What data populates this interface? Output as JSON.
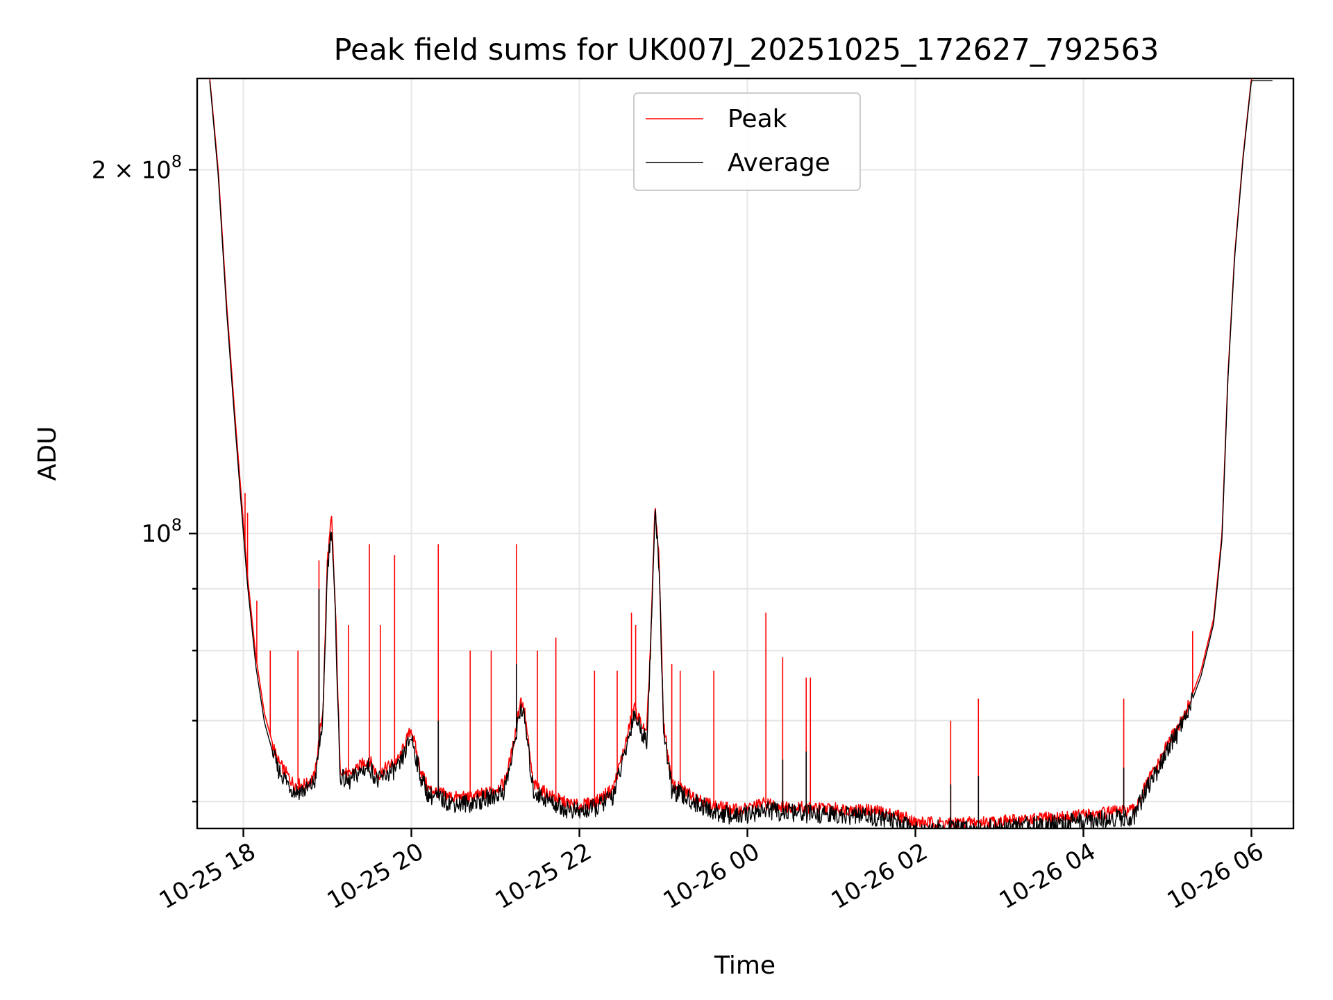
{
  "chart_data": {
    "type": "line",
    "title": "Peak field sums for UK007J_20251025_172627_792563",
    "xlabel": "Time",
    "ylabel": "ADU",
    "yscale": "log",
    "ylim": [
      57000000,
      238000000
    ],
    "xlim_hours": [
      -0.55,
      12.5
    ],
    "grid": true,
    "legend_position": "upper-center",
    "x_ticks": [
      {
        "hours": 0,
        "label": "10-25 18"
      },
      {
        "hours": 2,
        "label": "10-25 20"
      },
      {
        "hours": 4,
        "label": "10-25 22"
      },
      {
        "hours": 6,
        "label": "10-26 00"
      },
      {
        "hours": 8,
        "label": "10-26 02"
      },
      {
        "hours": 10,
        "label": "10-26 04"
      },
      {
        "hours": 12,
        "label": "10-26 06"
      }
    ],
    "y_ticks_major": [
      {
        "value": 100000000,
        "base": "10",
        "exp": "8",
        "coef": ""
      },
      {
        "value": 200000000,
        "base": "10",
        "exp": "8",
        "coef": "2 × "
      }
    ],
    "y_ticks_minor": [
      60000000,
      70000000,
      80000000,
      90000000
    ],
    "series": [
      {
        "name": "Peak",
        "color": "#ff0000",
        "x_hours": [
          -0.4,
          -0.3,
          -0.2,
          -0.1,
          0.0,
          0.05,
          0.15,
          0.25,
          0.4,
          0.6,
          0.75,
          0.85,
          0.95,
          1.0,
          1.05,
          1.1,
          1.15,
          1.25,
          1.35,
          1.5,
          1.6,
          1.7,
          1.85,
          2.0,
          2.1,
          2.2,
          2.5,
          2.7,
          2.9,
          3.1,
          3.2,
          3.3,
          3.35,
          3.45,
          3.6,
          3.8,
          4.0,
          4.2,
          4.4,
          4.55,
          4.65,
          4.72,
          4.8,
          4.85,
          4.9,
          4.95,
          5.0,
          5.1,
          5.3,
          5.6,
          5.9,
          6.2,
          6.4,
          6.7,
          7.0,
          7.5,
          7.9,
          8.0,
          8.3,
          8.8,
          9.2,
          9.8,
          10.3,
          10.6,
          10.8,
          10.9,
          11.0,
          11.2,
          11.4,
          11.55,
          11.65,
          11.72,
          11.8,
          11.9,
          12.0,
          12.1,
          12.25
        ],
        "values": [
          238000000,
          200000000,
          155000000,
          125000000,
          102000000,
          92000000,
          79000000,
          71000000,
          65000000,
          62000000,
          62000000,
          63000000,
          72000000,
          95000000,
          103000000,
          85000000,
          64000000,
          63000000,
          64000000,
          65000000,
          63000000,
          64000000,
          65000000,
          69000000,
          64000000,
          61500000,
          60500000,
          60500000,
          61000000,
          62000000,
          66000000,
          73000000,
          71000000,
          62000000,
          61000000,
          60000000,
          59500000,
          60000000,
          61500000,
          67000000,
          72000000,
          70000000,
          68000000,
          82000000,
          105000000,
          95000000,
          70000000,
          62000000,
          61000000,
          59500000,
          59000000,
          59800000,
          59500000,
          59300000,
          59200000,
          59000000,
          58200000,
          57700000,
          57600000,
          57700000,
          57900000,
          58300000,
          58800000,
          59000000,
          63000000,
          64500000,
          67000000,
          70500000,
          77000000,
          85000000,
          100000000,
          135000000,
          170000000,
          205000000,
          238000000,
          238000000,
          238000000
        ],
        "spikes": [
          {
            "hours": 0.02,
            "value": 108000000
          },
          {
            "hours": 0.05,
            "value": 104000000
          },
          {
            "hours": 0.16,
            "value": 88000000
          },
          {
            "hours": 0.32,
            "value": 80000000
          },
          {
            "hours": 0.65,
            "value": 80000000
          },
          {
            "hours": 0.9,
            "value": 95000000
          },
          {
            "hours": 1.08,
            "value": 91000000
          },
          {
            "hours": 1.25,
            "value": 84000000
          },
          {
            "hours": 1.5,
            "value": 98000000
          },
          {
            "hours": 1.63,
            "value": 84000000
          },
          {
            "hours": 1.8,
            "value": 96000000
          },
          {
            "hours": 2.32,
            "value": 98000000
          },
          {
            "hours": 2.7,
            "value": 80000000
          },
          {
            "hours": 2.95,
            "value": 80000000
          },
          {
            "hours": 3.25,
            "value": 98000000
          },
          {
            "hours": 3.5,
            "value": 80000000
          },
          {
            "hours": 3.72,
            "value": 82000000
          },
          {
            "hours": 4.18,
            "value": 77000000
          },
          {
            "hours": 4.45,
            "value": 77000000
          },
          {
            "hours": 4.62,
            "value": 86000000
          },
          {
            "hours": 4.67,
            "value": 84000000
          },
          {
            "hours": 5.1,
            "value": 78000000
          },
          {
            "hours": 5.2,
            "value": 77000000
          },
          {
            "hours": 5.6,
            "value": 77000000
          },
          {
            "hours": 6.22,
            "value": 86000000
          },
          {
            "hours": 6.42,
            "value": 79000000
          },
          {
            "hours": 6.7,
            "value": 76000000
          },
          {
            "hours": 6.75,
            "value": 76000000
          },
          {
            "hours": 8.42,
            "value": 70000000
          },
          {
            "hours": 8.75,
            "value": 73000000
          },
          {
            "hours": 10.48,
            "value": 73000000
          },
          {
            "hours": 11.3,
            "value": 83000000
          }
        ]
      },
      {
        "name": "Average",
        "color": "#000000",
        "x_hours": [
          -0.4,
          -0.3,
          -0.2,
          -0.1,
          0.0,
          0.05,
          0.15,
          0.25,
          0.4,
          0.6,
          0.75,
          0.85,
          0.95,
          1.0,
          1.05,
          1.1,
          1.15,
          1.25,
          1.35,
          1.5,
          1.6,
          1.7,
          1.85,
          2.0,
          2.1,
          2.2,
          2.5,
          2.7,
          2.9,
          3.1,
          3.2,
          3.3,
          3.35,
          3.45,
          3.6,
          3.8,
          4.0,
          4.2,
          4.4,
          4.55,
          4.65,
          4.72,
          4.8,
          4.85,
          4.9,
          4.95,
          5.0,
          5.1,
          5.3,
          5.6,
          5.9,
          6.2,
          6.4,
          6.7,
          7.0,
          7.5,
          7.9,
          8.0,
          8.3,
          8.8,
          9.2,
          9.8,
          10.3,
          10.6,
          10.8,
          10.9,
          11.0,
          11.2,
          11.4,
          11.55,
          11.65,
          11.72,
          11.8,
          11.9,
          12.0,
          12.1,
          12.25
        ],
        "values": [
          237000000,
          198000000,
          153000000,
          123000000,
          100000000,
          90500000,
          77500000,
          69800000,
          64000000,
          61200000,
          61300000,
          62300000,
          70500000,
          93500000,
          101500000,
          83500000,
          63000000,
          62200000,
          63200000,
          64200000,
          62300000,
          63200000,
          64000000,
          68000000,
          63200000,
          60800000,
          59800000,
          59800000,
          60300000,
          61200000,
          65200000,
          72000000,
          70000000,
          61200000,
          60300000,
          59300000,
          58800000,
          59300000,
          60700000,
          66000000,
          71000000,
          69200000,
          67200000,
          81000000,
          104000000,
          94000000,
          69200000,
          61300000,
          60300000,
          58800000,
          58300000,
          59100000,
          58800000,
          58600000,
          58500000,
          58300000,
          57500000,
          57000000,
          56900000,
          57000000,
          57200000,
          57600000,
          58100000,
          58300000,
          62300000,
          63800000,
          66300000,
          69800000,
          76200000,
          84200000,
          99000000,
          134000000,
          169000000,
          204000000,
          237000000,
          237000000,
          237000000
        ],
        "spikes": [
          {
            "hours": 0.9,
            "value": 90000000
          },
          {
            "hours": 2.32,
            "value": 70000000
          },
          {
            "hours": 3.25,
            "value": 78000000
          },
          {
            "hours": 6.42,
            "value": 65000000
          },
          {
            "hours": 6.7,
            "value": 66000000
          },
          {
            "hours": 8.42,
            "value": 62000000
          },
          {
            "hours": 8.75,
            "value": 63000000
          },
          {
            "hours": 10.48,
            "value": 64000000
          }
        ]
      }
    ]
  }
}
